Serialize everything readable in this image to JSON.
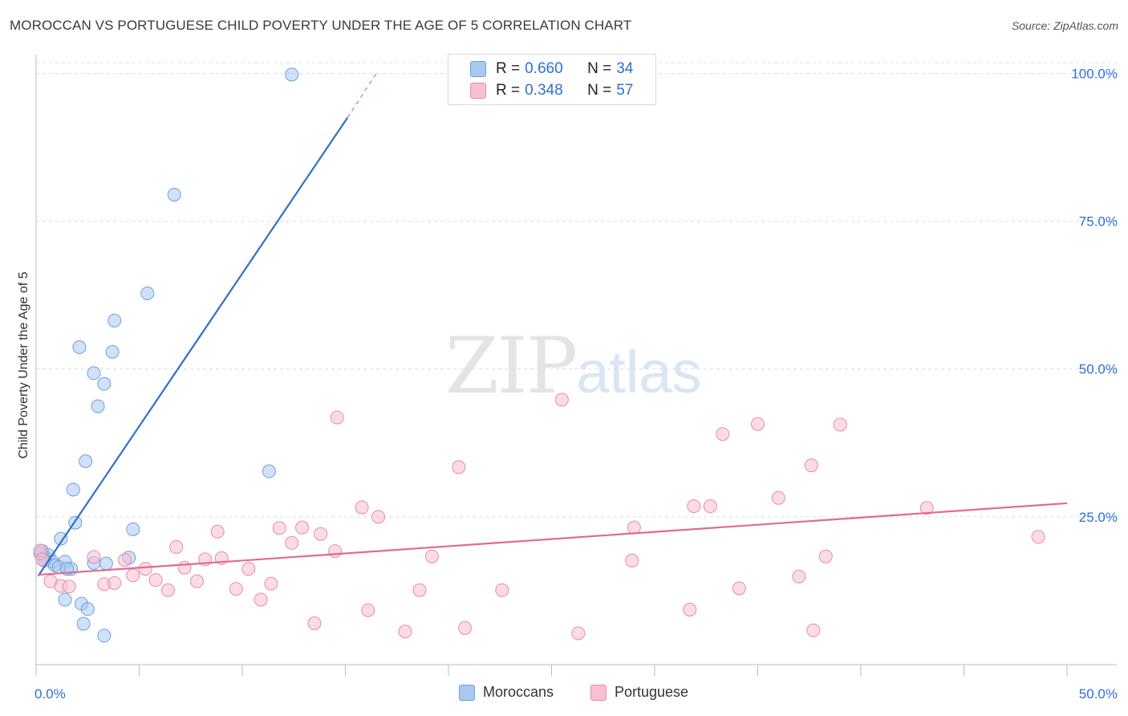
{
  "chart_data": {
    "type": "scatter",
    "title": "MOROCCAN VS PORTUGUESE CHILD POVERTY UNDER THE AGE OF 5 CORRELATION CHART",
    "source": "Source: ZipAtlas.com",
    "xlabel": "",
    "ylabel": "Child Poverty Under the Age of 5",
    "xlim": [
      0,
      50
    ],
    "ylim": [
      0,
      104
    ],
    "x_tick_labels": [
      "0.0%",
      "50.0%"
    ],
    "y_ticks": [
      25,
      50,
      75,
      100
    ],
    "y_tick_labels": [
      "25.0%",
      "50.0%",
      "75.0%",
      "100.0%"
    ],
    "watermark": {
      "zip": "ZIP",
      "atlas": "atlas"
    },
    "legend": [
      {
        "name": "Moroccans",
        "r_label": "R =",
        "r": "0.660",
        "n_label": "N =",
        "n": "34",
        "color": "#a9c9f2",
        "stroke": "#6f9fd8"
      },
      {
        "name": "Portuguese",
        "r_label": "R =",
        "r": "0.348",
        "n_label": "N =",
        "n": "57",
        "color": "#f8c0d0",
        "stroke": "#e88aa6"
      }
    ],
    "series": [
      {
        "name": "Moroccans",
        "color": "#a9c9f2",
        "stroke": "#6f9fd8",
        "line_color": "#2f6fc9",
        "trend": {
          "x0": 0.1,
          "y0": 15,
          "x1": 15.1,
          "y1": 92.5,
          "dash_to_x": 16.5,
          "dash_to_y": 100
        },
        "points": [
          [
            12.4,
            99.8
          ],
          [
            6.7,
            79.5
          ],
          [
            5.4,
            62.8
          ],
          [
            3.8,
            58.2
          ],
          [
            2.1,
            53.7
          ],
          [
            3.7,
            52.9
          ],
          [
            2.8,
            49.3
          ],
          [
            3.3,
            47.5
          ],
          [
            3.0,
            43.7
          ],
          [
            2.4,
            34.4
          ],
          [
            11.3,
            32.7
          ],
          [
            1.8,
            29.6
          ],
          [
            1.9,
            24.0
          ],
          [
            4.7,
            22.9
          ],
          [
            1.2,
            21.3
          ],
          [
            0.3,
            19.2
          ],
          [
            0.6,
            18.5
          ],
          [
            0.4,
            18.2
          ],
          [
            4.5,
            18.1
          ],
          [
            1.4,
            17.4
          ],
          [
            0.8,
            17.4
          ],
          [
            3.4,
            17.1
          ],
          [
            2.8,
            17.2
          ],
          [
            0.9,
            16.8
          ],
          [
            1.1,
            16.5
          ],
          [
            1.7,
            16.2
          ],
          [
            1.5,
            16.2
          ],
          [
            0.4,
            17.6
          ],
          [
            1.4,
            11.0
          ],
          [
            2.2,
            10.3
          ],
          [
            2.5,
            9.4
          ],
          [
            2.3,
            6.9
          ],
          [
            3.3,
            4.9
          ],
          [
            0.2,
            18.8
          ]
        ]
      },
      {
        "name": "Portuguese",
        "color": "#f8c0d0",
        "stroke": "#e88aa6",
        "line_color": "#e06a92",
        "trend": {
          "x0": 0.1,
          "y0": 15.2,
          "x1": 50,
          "y1": 27.3
        },
        "points": [
          [
            0.2,
            19.3
          ],
          [
            0.7,
            14.1
          ],
          [
            1.2,
            13.3
          ],
          [
            1.6,
            13.2
          ],
          [
            2.8,
            18.2
          ],
          [
            3.3,
            13.6
          ],
          [
            3.8,
            13.8
          ],
          [
            4.3,
            17.7
          ],
          [
            4.7,
            15.1
          ],
          [
            5.3,
            16.2
          ],
          [
            5.8,
            14.3
          ],
          [
            6.4,
            12.6
          ],
          [
            6.8,
            19.9
          ],
          [
            7.2,
            16.4
          ],
          [
            7.8,
            14.1
          ],
          [
            8.2,
            17.8
          ],
          [
            8.8,
            22.5
          ],
          [
            9.0,
            18.0
          ],
          [
            9.7,
            12.8
          ],
          [
            10.3,
            16.2
          ],
          [
            10.9,
            11.0
          ],
          [
            11.4,
            13.7
          ],
          [
            11.8,
            23.1
          ],
          [
            12.4,
            20.6
          ],
          [
            12.9,
            23.2
          ],
          [
            13.5,
            7.0
          ],
          [
            13.8,
            22.1
          ],
          [
            14.5,
            19.2
          ],
          [
            14.6,
            41.8
          ],
          [
            15.8,
            26.6
          ],
          [
            16.1,
            9.2
          ],
          [
            16.6,
            25.0
          ],
          [
            17.9,
            5.6
          ],
          [
            18.6,
            12.6
          ],
          [
            19.2,
            18.3
          ],
          [
            20.5,
            33.4
          ],
          [
            20.8,
            6.2
          ],
          [
            22.6,
            12.6
          ],
          [
            25.5,
            44.8
          ],
          [
            26.3,
            5.3
          ],
          [
            28.9,
            17.6
          ],
          [
            29.0,
            23.2
          ],
          [
            31.7,
            9.3
          ],
          [
            31.9,
            26.8
          ],
          [
            32.7,
            26.8
          ],
          [
            33.3,
            39.0
          ],
          [
            34.1,
            12.9
          ],
          [
            35.0,
            40.7
          ],
          [
            36.0,
            28.2
          ],
          [
            37.0,
            14.9
          ],
          [
            37.6,
            33.7
          ],
          [
            37.7,
            5.8
          ],
          [
            38.3,
            18.3
          ],
          [
            39.0,
            40.6
          ],
          [
            43.2,
            26.5
          ],
          [
            48.6,
            21.6
          ],
          [
            0.3,
            17.8
          ]
        ]
      }
    ]
  }
}
